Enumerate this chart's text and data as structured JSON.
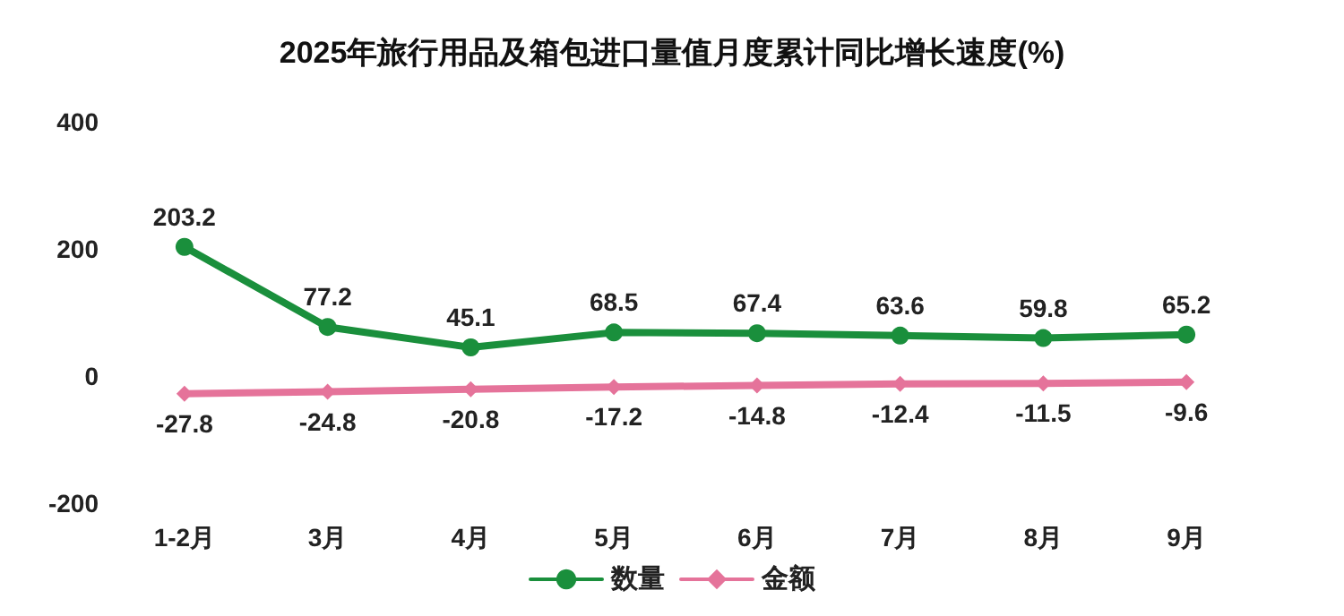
{
  "chart_data": {
    "type": "line",
    "title": "2025年旅行用品及箱包进口量值月度累计同比增长速度(%)",
    "categories": [
      "1-2月",
      "3月",
      "4月",
      "5月",
      "6月",
      "7月",
      "8月",
      "9月"
    ],
    "series": [
      {
        "name": "数量",
        "color": "#1a8f3c",
        "marker": "circle",
        "values": [
          203.2,
          77.2,
          45.1,
          68.5,
          67.4,
          63.6,
          59.8,
          65.2
        ]
      },
      {
        "name": "金额",
        "color": "#e5739a",
        "marker": "diamond",
        "values": [
          -27.8,
          -24.8,
          -20.8,
          -17.2,
          -14.8,
          -12.4,
          -11.5,
          -9.6
        ]
      }
    ],
    "ylim": [
      -200,
      400
    ],
    "yticks": [
      -200,
      0,
      200,
      400
    ],
    "grid": false,
    "legend": "bottom",
    "data_labels": true,
    "line_style": "solid"
  }
}
